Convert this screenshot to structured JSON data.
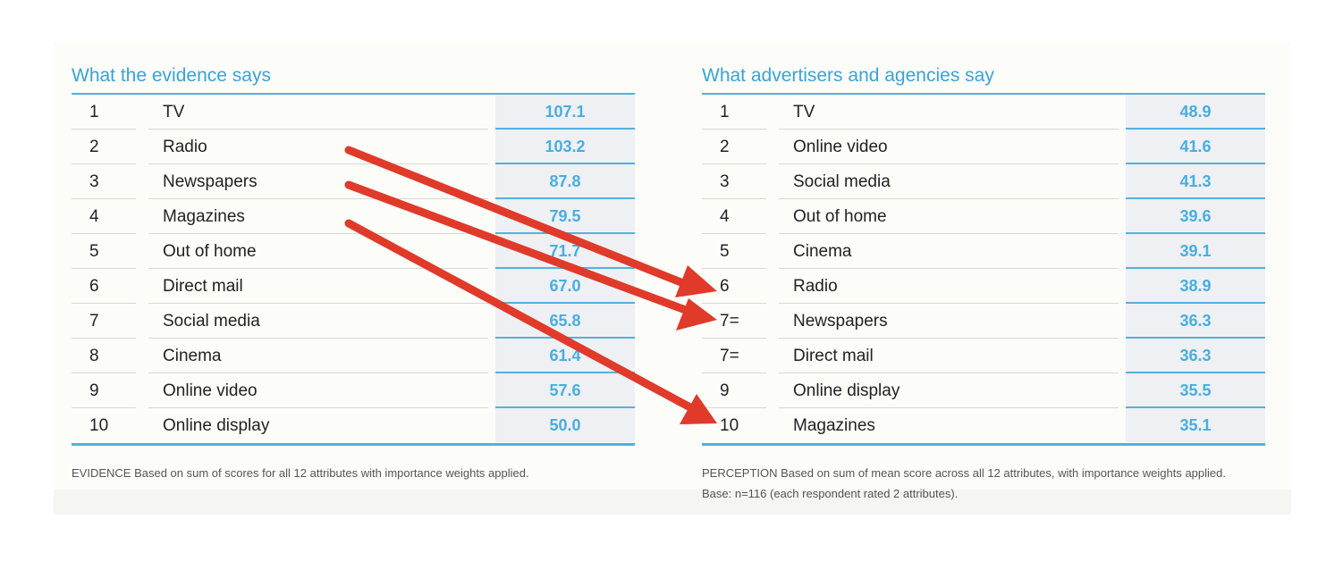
{
  "evidence": {
    "heading": "What the evidence says",
    "rows": [
      {
        "rank": "1",
        "name": "TV",
        "value": "107.1"
      },
      {
        "rank": "2",
        "name": "Radio",
        "value": "103.2"
      },
      {
        "rank": "3",
        "name": "Newspapers",
        "value": "87.8"
      },
      {
        "rank": "4",
        "name": "Magazines",
        "value": "79.5"
      },
      {
        "rank": "5",
        "name": "Out of home",
        "value": "71.7"
      },
      {
        "rank": "6",
        "name": "Direct mail",
        "value": "67.0"
      },
      {
        "rank": "7",
        "name": "Social media",
        "value": "65.8"
      },
      {
        "rank": "8",
        "name": "Cinema",
        "value": "61.4"
      },
      {
        "rank": "9",
        "name": "Online video",
        "value": "57.6"
      },
      {
        "rank": "10",
        "name": "Online display",
        "value": "50.0"
      }
    ],
    "footnote": "EVIDENCE Based on sum of scores for all 12 attributes with importance weights applied."
  },
  "perception": {
    "heading": "What advertisers and agencies say",
    "rows": [
      {
        "rank": "1",
        "name": "TV",
        "value": "48.9"
      },
      {
        "rank": "2",
        "name": "Online video",
        "value": "41.6"
      },
      {
        "rank": "3",
        "name": "Social media",
        "value": "41.3"
      },
      {
        "rank": "4",
        "name": "Out of home",
        "value": "39.6"
      },
      {
        "rank": "5",
        "name": "Cinema",
        "value": "39.1"
      },
      {
        "rank": "6",
        "name": "Radio",
        "value": "38.9"
      },
      {
        "rank": "7=",
        "name": "Newspapers",
        "value": "36.3"
      },
      {
        "rank": "7=",
        "name": "Direct mail",
        "value": "36.3"
      },
      {
        "rank": "9",
        "name": "Online display",
        "value": "35.5"
      },
      {
        "rank": "10",
        "name": "Magazines",
        "value": "35.1"
      }
    ],
    "footnote": "PERCEPTION Based on sum of mean score across all 12 attributes, with importance weights applied.  Base: n=116 (each respondent rated 2 attributes)."
  },
  "colors": {
    "accent": "#3aa3d6",
    "value_text": "#48aee0",
    "arrow": "#e03a2a"
  }
}
